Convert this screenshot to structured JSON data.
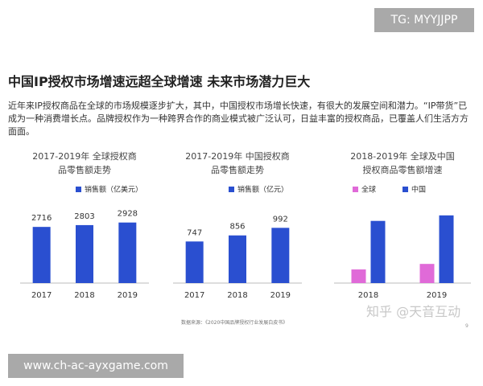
{
  "page": {
    "watermark_top": "TG: MYYJJPP",
    "title": "中国IP授权市场增速远超全球增速 未来市场潜力巨大",
    "paragraph": "近年来IP授权商品在全球的市场规模逐步扩大，其中，中国授权市场增长快速，有很大的发展空间和潜力。“IP带货”已成为一种消费增长点。品牌授权作为一种跨界合作的商业模式被广泛认可，日益丰富的授权商品，已覆盖人们生活方方面面。",
    "source": "数据来源：《2020中国品牌授权行业发展白皮书》",
    "page_number": "9",
    "zhihu": "知乎 @天音互动",
    "watermark_bottom": "www.ch-ac-ayxgame.com"
  },
  "chart_data": [
    {
      "type": "bar",
      "title": "2017-2019年 全球授权商品零售额走势",
      "categories": [
        "2017",
        "2018",
        "2019"
      ],
      "series": [
        {
          "name": "销售额（亿美元）",
          "color": "#2a4fd0",
          "values": [
            2716,
            2803,
            2928
          ]
        }
      ],
      "ylim": [
        0,
        3500
      ],
      "data_labels": true
    },
    {
      "type": "bar",
      "title": "2017-2019年 中国授权商品零售额走势",
      "categories": [
        "2017",
        "2018",
        "2019"
      ],
      "series": [
        {
          "name": "销售额（亿元）",
          "color": "#2a4fd0",
          "values": [
            747,
            856,
            992
          ]
        }
      ],
      "ylim": [
        0,
        1300
      ],
      "data_labels": true
    },
    {
      "type": "bar",
      "title": "2018-2019年 全球及中国授权商品零售额增速",
      "categories": [
        "2018",
        "2019"
      ],
      "series": [
        {
          "name": "全球",
          "color": "#e06ad8",
          "values": [
            3.2,
            4.5
          ]
        },
        {
          "name": "中国",
          "color": "#2a4fd0",
          "values": [
            14.6,
            15.9
          ]
        }
      ],
      "ylim": [
        0,
        17
      ],
      "data_labels": false
    }
  ]
}
